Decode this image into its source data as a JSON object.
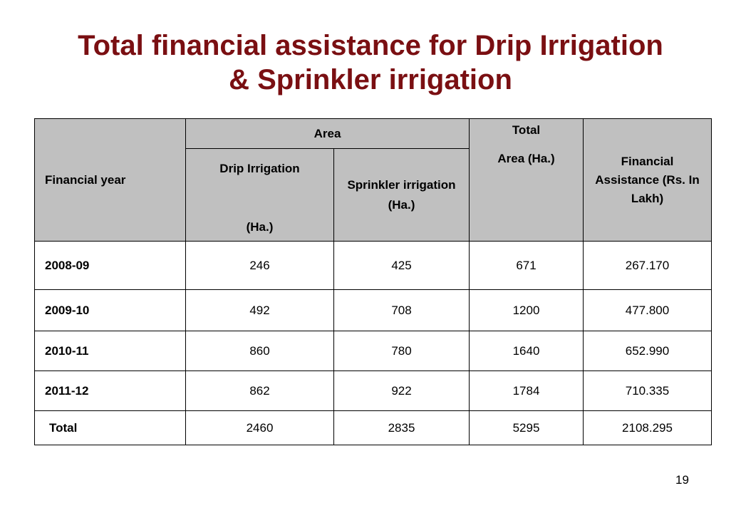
{
  "title": {
    "line1": "Total financial assistance for Drip Irrigation",
    "line2": "& Sprinkler irrigation"
  },
  "table": {
    "headers": {
      "financial_year": "Financial year",
      "area": "Area",
      "total_top": "Total",
      "total_bottom": "Area (Ha.)",
      "drip_line1": "Drip Irrigation",
      "drip_line2": "(Ha.)",
      "sprinkler": "Sprinkler irrigation (Ha.)",
      "financial_assistance": "Financial Assistance (Rs. In Lakh)"
    },
    "rows": [
      {
        "year": "2008-09",
        "drip": "246",
        "sprinkler": "425",
        "total": "671",
        "assistance": "267.170"
      },
      {
        "year": "2009-10",
        "drip": "492",
        "sprinkler": "708",
        "total": "1200",
        "assistance": "477.800"
      },
      {
        "year": "2010-11",
        "drip": "860",
        "sprinkler": "780",
        "total": "1640",
        "assistance": "652.990"
      },
      {
        "year": "2011-12",
        "drip": "862",
        "sprinkler": "922",
        "total": "1784",
        "assistance": "710.335"
      }
    ],
    "total_row": {
      "label": "Total",
      "drip": "2460",
      "sprinkler": "2835",
      "total": "5295",
      "assistance": "2108.295"
    }
  },
  "page_number": "19"
}
